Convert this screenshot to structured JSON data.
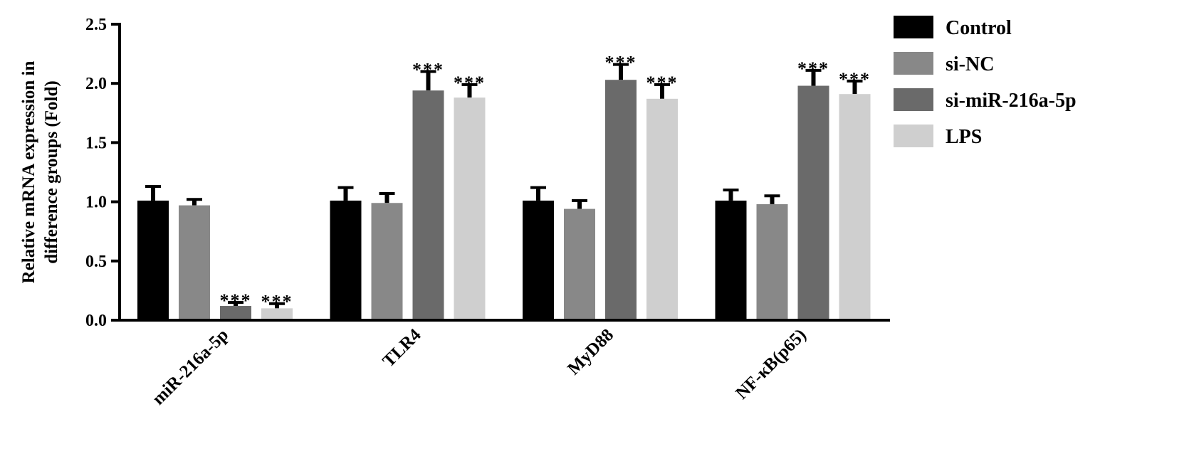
{
  "chart_data": {
    "type": "bar",
    "title": "",
    "xlabel": "",
    "ylabel": [
      "Relative mRNA expression in",
      "difference groups (Fold)"
    ],
    "ylim": [
      0,
      2.5
    ],
    "yticks": [
      "0.0",
      "0.5",
      "1.0",
      "1.5",
      "2.0",
      "2.5"
    ],
    "categories": [
      "miR-216a-5p",
      "TLR4",
      "MyD88",
      "NF-κB(p65)"
    ],
    "legend_position": "top-right",
    "series": [
      {
        "name": "Control",
        "color": "#000000",
        "values": [
          1.01,
          1.01,
          1.01,
          1.01
        ],
        "errors": [
          0.12,
          0.11,
          0.11,
          0.09
        ],
        "sig": [
          "",
          "",
          "",
          ""
        ]
      },
      {
        "name": "si-NC",
        "color": "#888888",
        "values": [
          0.97,
          0.99,
          0.94,
          0.98
        ],
        "errors": [
          0.05,
          0.08,
          0.07,
          0.07
        ],
        "sig": [
          "",
          "",
          "",
          ""
        ]
      },
      {
        "name": "si-miR-216a-5p",
        "color": "#6a6a6a",
        "values": [
          0.12,
          1.94,
          2.03,
          1.98
        ],
        "errors": [
          0.03,
          0.16,
          0.13,
          0.13
        ],
        "sig": [
          "***",
          "***",
          "***",
          "***"
        ]
      },
      {
        "name": "LPS",
        "color": "#cfcfcf",
        "values": [
          0.1,
          1.88,
          1.87,
          1.91
        ],
        "errors": [
          0.04,
          0.11,
          0.12,
          0.11
        ],
        "sig": [
          "***",
          "***",
          "***",
          "***"
        ]
      }
    ]
  }
}
